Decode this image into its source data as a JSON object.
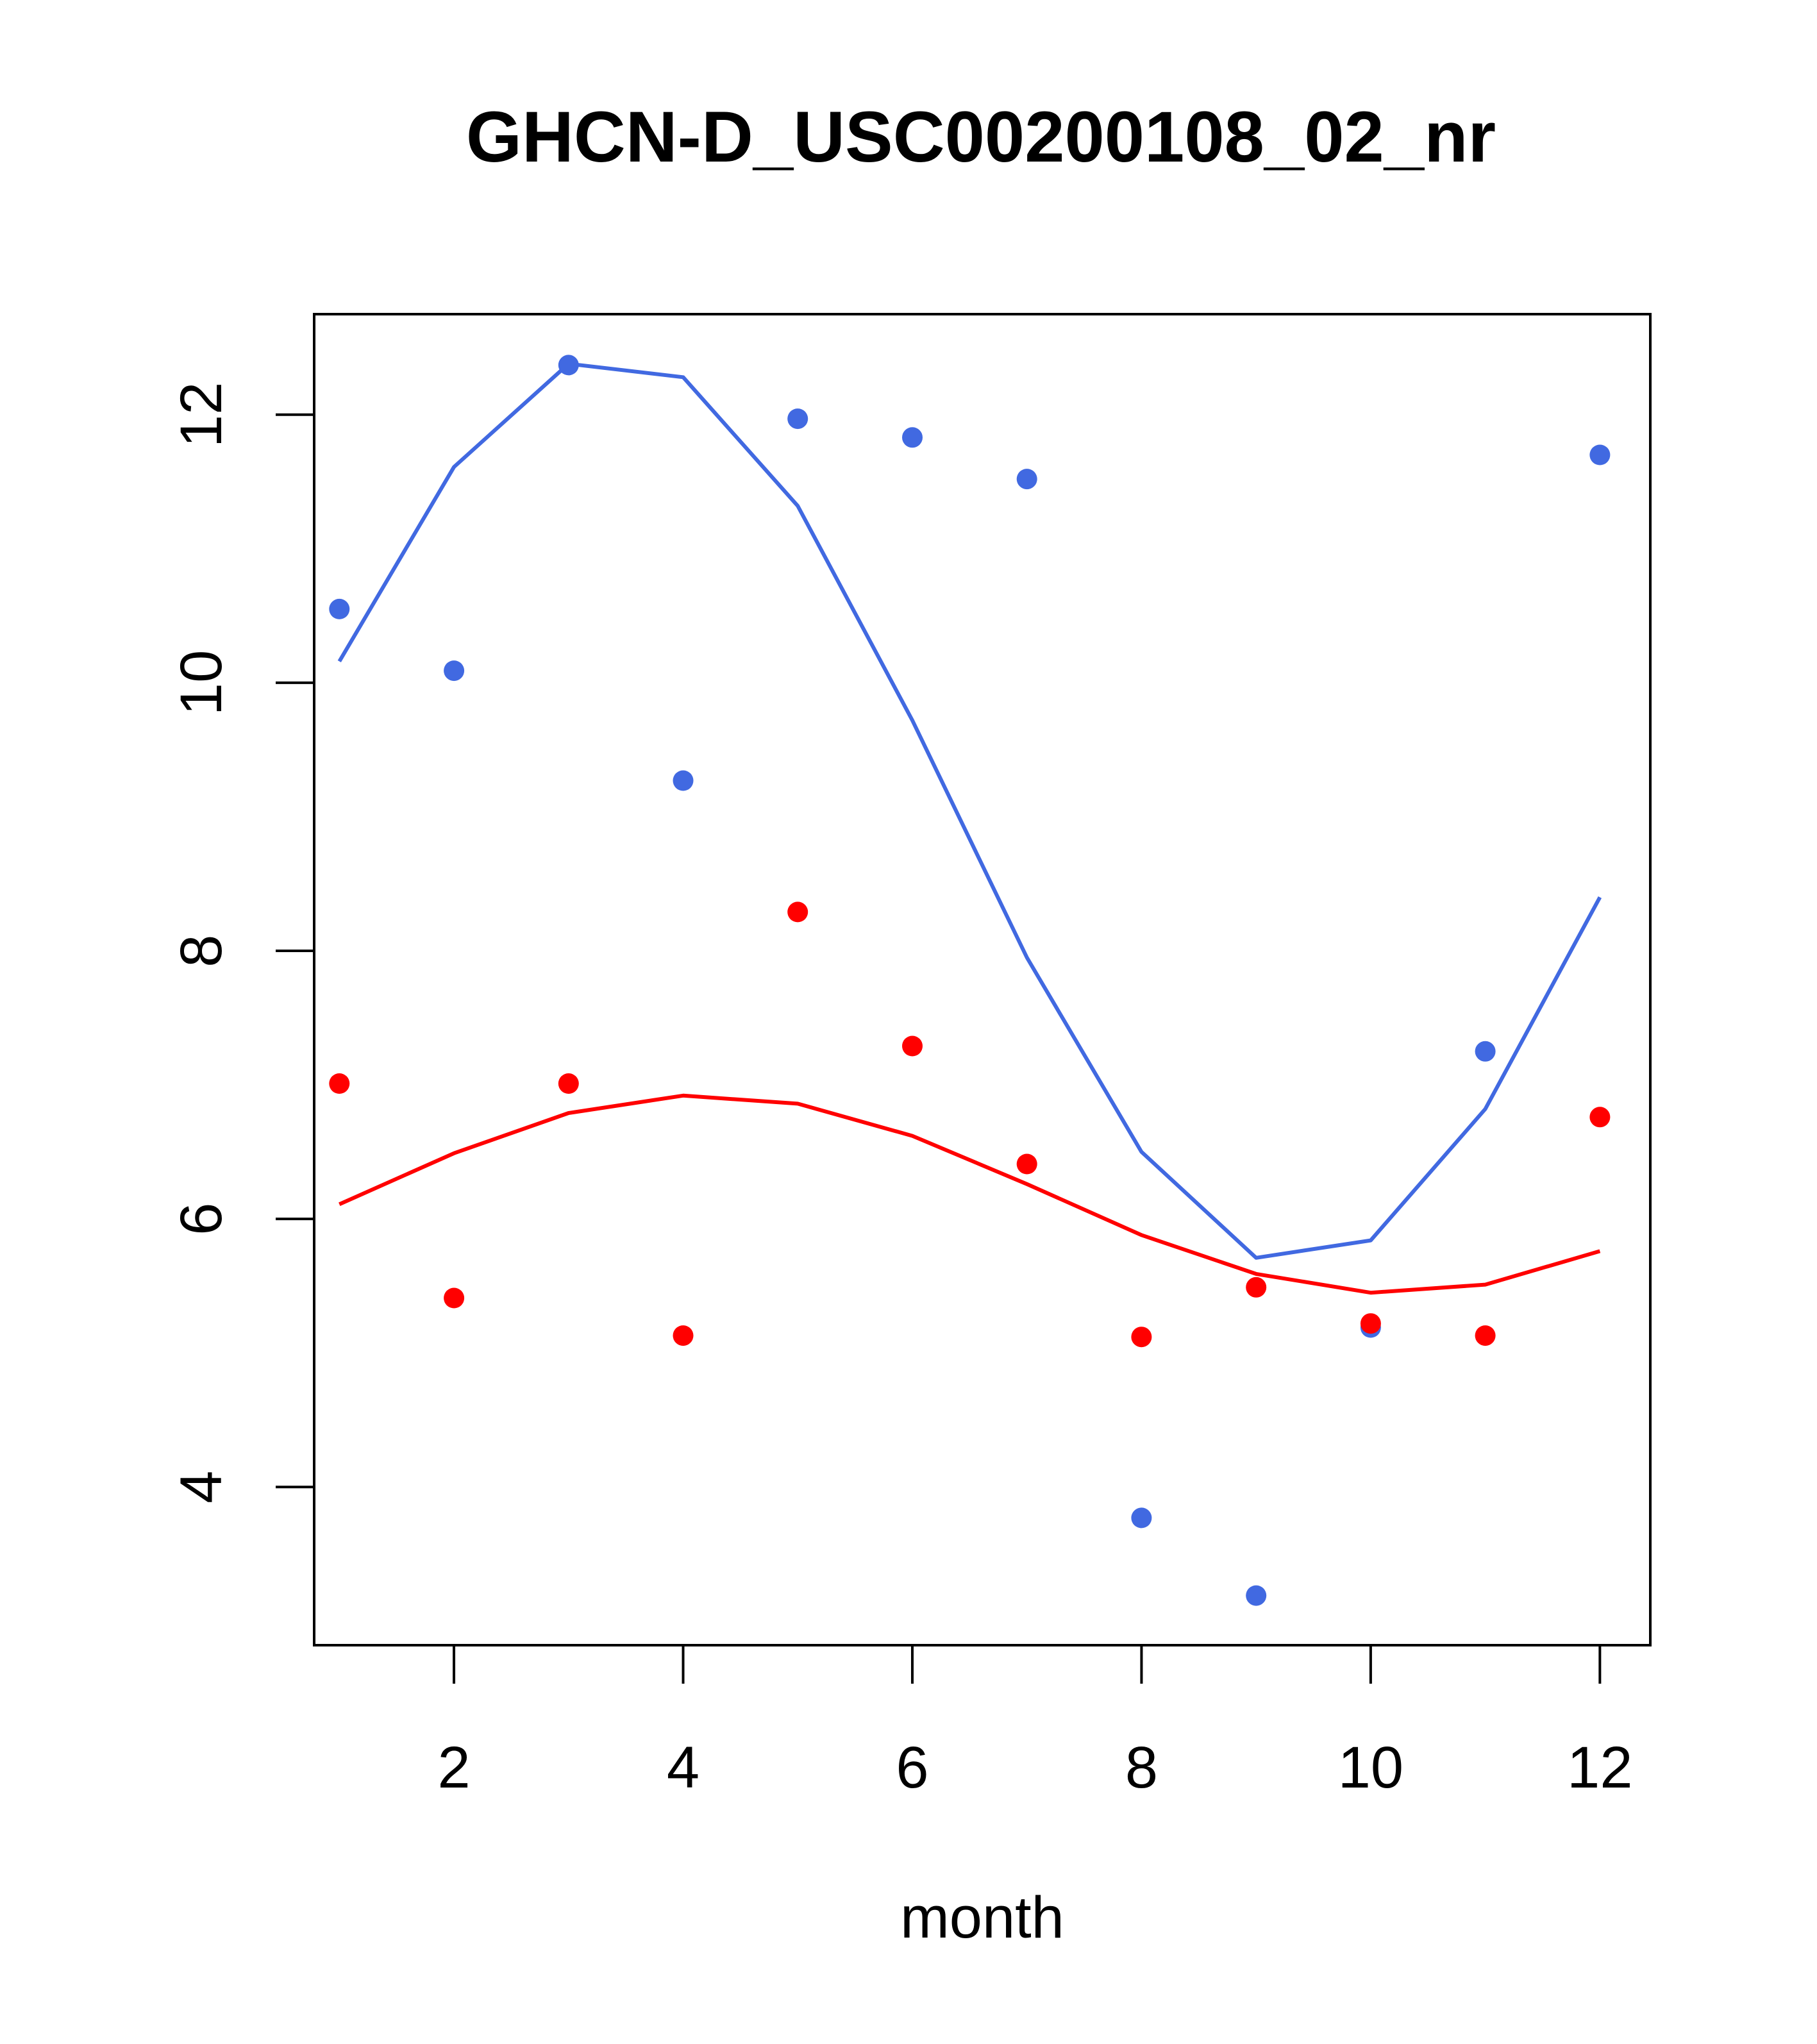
{
  "chart_data": {
    "type": "scatter",
    "title": "GHCN-D_USC00200108_02_nr",
    "xlabel": "month",
    "ylabel": "",
    "xlim": [
      0.78,
      12.44
    ],
    "ylim": [
      2.82,
      12.75
    ],
    "x_ticks": [
      2,
      4,
      6,
      8,
      10,
      12
    ],
    "y_ticks": [
      4,
      6,
      8,
      10,
      12
    ],
    "grid": false,
    "legend": "none",
    "series": [
      {
        "kind": "points",
        "color": "#4169E1",
        "x": [
          1,
          2,
          3,
          4,
          5,
          6,
          7,
          8,
          9,
          10,
          11,
          12
        ],
        "y": [
          10.55,
          10.09,
          12.37,
          9.27,
          11.97,
          11.83,
          11.52,
          3.77,
          3.19,
          5.19,
          7.25,
          11.7
        ]
      },
      {
        "kind": "line",
        "color": "#4169E1",
        "x": [
          1,
          2,
          3,
          4,
          5,
          6,
          7,
          8,
          9,
          10,
          11,
          12
        ],
        "y": [
          10.16,
          11.61,
          12.38,
          12.28,
          11.32,
          9.72,
          7.95,
          6.5,
          5.71,
          5.84,
          6.82,
          8.4
        ]
      },
      {
        "kind": "points",
        "color": "#FF0000",
        "x": [
          1,
          2,
          3,
          4,
          5,
          6,
          7,
          8,
          9,
          10,
          11,
          12
        ],
        "y": [
          7.01,
          5.41,
          7.01,
          5.13,
          8.29,
          7.29,
          6.41,
          5.12,
          5.49,
          5.22,
          5.13,
          6.76
        ]
      },
      {
        "kind": "line",
        "color": "#FF0000",
        "x": [
          1,
          2,
          3,
          4,
          5,
          6,
          7,
          8,
          9,
          10,
          11,
          12
        ],
        "y": [
          6.11,
          6.49,
          6.79,
          6.92,
          6.86,
          6.62,
          6.26,
          5.88,
          5.59,
          5.45,
          5.51,
          5.76
        ]
      }
    ]
  }
}
